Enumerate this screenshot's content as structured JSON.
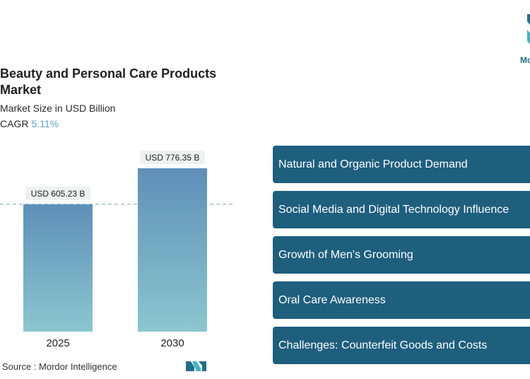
{
  "header": {
    "title": "Beauty and Personal Care Products Market",
    "subtitle": "Market Size in USD Billion",
    "cagr_label": "CAGR",
    "cagr_value": "5.11%"
  },
  "footer": {
    "source": "Source :  Mordor Intelligence"
  },
  "logo": {
    "text": "Mo"
  },
  "colors": {
    "bar_top": "#5e90b8",
    "bar_bottom": "#8cc6cf",
    "driver_bg": "#1e5f7e",
    "accent": "#5fa3c4"
  },
  "chart_data": {
    "type": "bar",
    "categories": [
      "2025",
      "2030"
    ],
    "values": [
      605.23,
      776.35
    ],
    "value_labels": [
      "USD 605.23 B",
      "USD 776.35 B"
    ],
    "title": "Beauty and Personal Care Products Market",
    "subtitle": "Market Size in USD Billion",
    "reference_line": 605.23,
    "grid": false
  },
  "drivers": [
    "Natural and Organic Product Demand",
    "Social Media and Digital Technology Influence",
    "Growth of Men's Grooming",
    "Oral Care Awareness",
    "Challenges: Counterfeit Goods and Costs"
  ]
}
